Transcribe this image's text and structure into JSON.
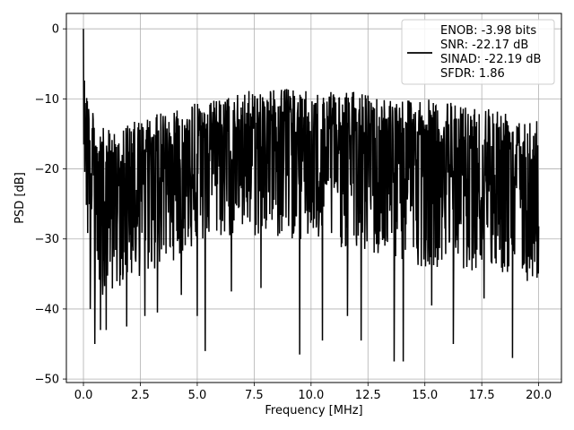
{
  "chart_data": {
    "type": "line",
    "title": "",
    "xlabel": "Frequency [MHz]",
    "ylabel": "PSD [dB]",
    "xlim": [
      -0.75,
      21.0
    ],
    "ylim": [
      -50.5,
      2.2
    ],
    "xticks": [
      0.0,
      2.5,
      5.0,
      7.5,
      10.0,
      12.5,
      15.0,
      17.5,
      20.0
    ],
    "xtick_labels": [
      "0.0",
      "2.5",
      "5.0",
      "7.5",
      "10.0",
      "12.5",
      "15.0",
      "17.5",
      "20.0"
    ],
    "yticks": [
      0,
      -10,
      -20,
      -30,
      -40,
      -50
    ],
    "ytick_labels": [
      "0",
      "−10",
      "−20",
      "−30",
      "−40",
      "−50"
    ],
    "grid": true,
    "legend_placement": "top-right",
    "series": [
      {
        "color": "#000000",
        "legend_lines": [
          "ENOB: -3.98 bits",
          "SNR: -22.17 dB",
          "SINAD: -22.19 dB",
          "SFDR: 1.86"
        ],
        "envelope": {
          "x": [
            0.0,
            0.05,
            0.2,
            0.5,
            1.0,
            2.0,
            3.0,
            4.0,
            5.0,
            6.0,
            7.0,
            8.0,
            9.0,
            10.0,
            11.0,
            12.0,
            13.0,
            14.0,
            15.0,
            16.0,
            17.0,
            18.0,
            19.0,
            20.0
          ],
          "upper": [
            0.0,
            -4.0,
            -9.0,
            -13.0,
            -14.5,
            -13.5,
            -12.5,
            -11.0,
            -10.5,
            -10.0,
            -9.0,
            -8.5,
            -8.5,
            -9.0,
            -9.0,
            -9.0,
            -9.5,
            -9.5,
            -10.0,
            -10.5,
            -10.5,
            -11.0,
            -11.5,
            -12.5
          ],
          "lower": [
            -4.0,
            -22.0,
            -32.0,
            -38.0,
            -38.0,
            -36.0,
            -35.0,
            -33.0,
            -31.0,
            -30.0,
            -30.0,
            -30.0,
            -30.0,
            -31.0,
            -31.0,
            -32.0,
            -33.0,
            -33.5,
            -34.0,
            -34.0,
            -34.5,
            -35.0,
            -35.5,
            -36.0
          ]
        },
        "deep_dips": [
          {
            "x": 0.3,
            "y": -40.0
          },
          {
            "x": 0.5,
            "y": -45.0
          },
          {
            "x": 0.75,
            "y": -43.0
          },
          {
            "x": 1.0,
            "y": -43.0
          },
          {
            "x": 1.9,
            "y": -42.5
          },
          {
            "x": 2.7,
            "y": -41.0
          },
          {
            "x": 3.25,
            "y": -40.5
          },
          {
            "x": 4.3,
            "y": -38.0
          },
          {
            "x": 5.0,
            "y": -41.0
          },
          {
            "x": 5.35,
            "y": -46.0
          },
          {
            "x": 6.5,
            "y": -37.5
          },
          {
            "x": 7.8,
            "y": -37.0
          },
          {
            "x": 9.5,
            "y": -46.5
          },
          {
            "x": 10.5,
            "y": -44.5
          },
          {
            "x": 11.6,
            "y": -41.0
          },
          {
            "x": 12.2,
            "y": -44.5
          },
          {
            "x": 13.65,
            "y": -47.5
          },
          {
            "x": 14.05,
            "y": -47.5
          },
          {
            "x": 15.3,
            "y": -39.5
          },
          {
            "x": 16.25,
            "y": -45.0
          },
          {
            "x": 17.6,
            "y": -38.5
          },
          {
            "x": 18.85,
            "y": -47.0
          },
          {
            "x": 19.5,
            "y": -36.0
          }
        ]
      }
    ]
  }
}
